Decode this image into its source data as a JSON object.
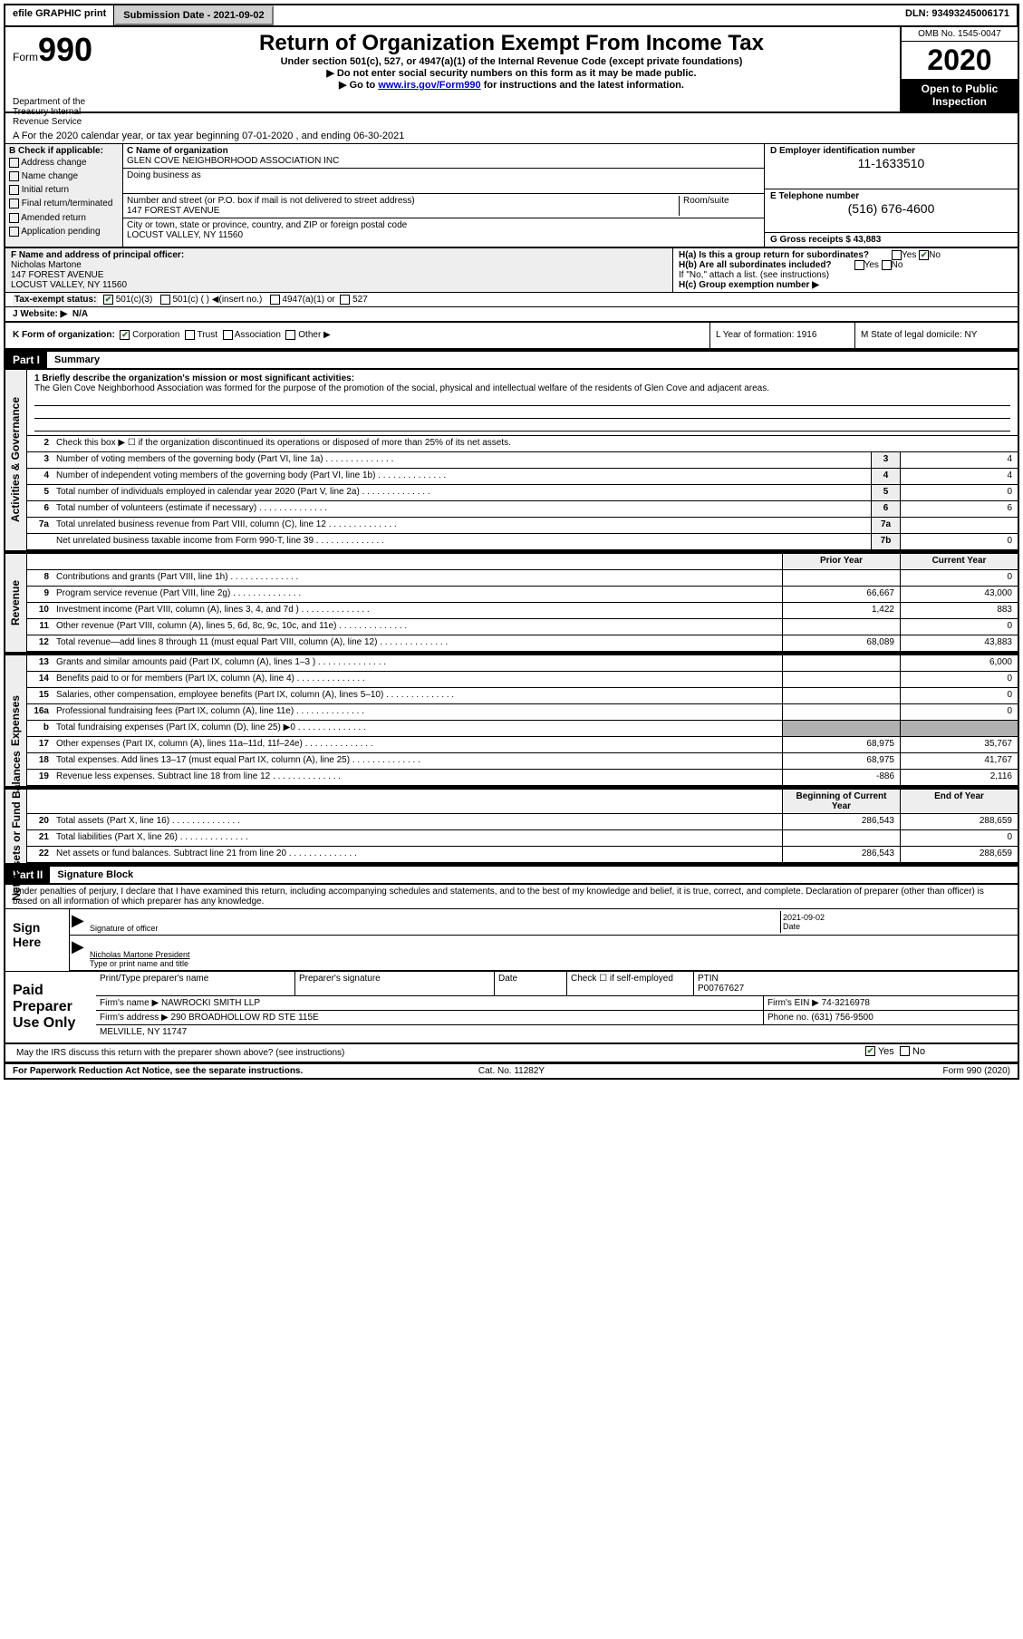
{
  "topbar": {
    "efile": "efile GRAPHIC print",
    "submission_label": "Submission Date - 2021-09-02",
    "dln": "DLN: 93493245006171"
  },
  "header": {
    "form_word": "Form",
    "form_number": "990",
    "title": "Return of Organization Exempt From Income Tax",
    "subtitle": "Under section 501(c), 527, or 4947(a)(1) of the Internal Revenue Code (except private foundations)",
    "instruction1": "▶ Do not enter social security numbers on this form as it may be made public.",
    "instruction2_pre": "▶ Go to ",
    "instruction2_link": "www.irs.gov/Form990",
    "instruction2_post": " for instructions and the latest information.",
    "omb": "OMB No. 1545-0047",
    "year": "2020",
    "public": "Open to Public Inspection",
    "dept": "Department of the Treasury Internal Revenue Service"
  },
  "section_a": "A For the 2020 calendar year, or tax year beginning 07-01-2020    , and ending 06-30-2021",
  "section_b": {
    "header": "B Check if applicable:",
    "items": [
      "Address change",
      "Name change",
      "Initial return",
      "Final return/terminated",
      "Amended return",
      "Application pending"
    ]
  },
  "section_c": {
    "name_label": "C Name of organization",
    "name": "GLEN COVE NEIGHBORHOOD ASSOCIATION INC",
    "dba_label": "Doing business as",
    "street_label": "Number and street (or P.O. box if mail is not delivered to street address)",
    "room_label": "Room/suite",
    "street": "147 FOREST AVENUE",
    "city_label": "City or town, state or province, country, and ZIP or foreign postal code",
    "city": "LOCUST VALLEY, NY  11560"
  },
  "section_d": {
    "ein_label": "D Employer identification number",
    "ein": "11-1633510",
    "phone_label": "E Telephone number",
    "phone": "(516) 676-4600",
    "gross_label": "G Gross receipts $ 43,883"
  },
  "section_f": {
    "label": "F  Name and address of principal officer:",
    "name": "Nicholas Martone",
    "addr1": "147 FOREST AVENUE",
    "addr2": "LOCUST VALLEY, NY  11560"
  },
  "section_h": {
    "ha": "H(a)  Is this a group return for subordinates?",
    "hb": "H(b)  Are all subordinates included?",
    "hb_note": "If \"No,\" attach a list. (see instructions)",
    "hc": "H(c)  Group exemption number ▶",
    "yes": "Yes",
    "no": "No"
  },
  "tax_exempt": {
    "label": "Tax-exempt status:",
    "opts": [
      "501(c)(3)",
      "501(c) (  ) ◀(insert no.)",
      "4947(a)(1) or",
      "527"
    ]
  },
  "website": {
    "label": "J   Website: ▶",
    "value": "N/A"
  },
  "section_k": {
    "label": "K Form of organization:",
    "opts": [
      "Corporation",
      "Trust",
      "Association",
      "Other ▶"
    ]
  },
  "section_l": {
    "label": "L Year of formation: 1916"
  },
  "section_m": {
    "label": "M State of legal domicile: NY"
  },
  "part1": {
    "num": "Part I",
    "title": "Summary",
    "sections": [
      "Activities & Governance",
      "Revenue",
      "Expenses",
      "Net Assets or Fund Balances"
    ],
    "mission_label": "1  Briefly describe the organization's mission or most significant activities:",
    "mission": "The Glen Cove Neighborhood Association was formed for the purpose of the promotion of the social, physical and intellectual welfare of the residents of Glen Cove and adjacent areas.",
    "line2": "Check this box ▶ ☐  if the organization discontinued its operations or disposed of more than 25% of its net assets.",
    "gov_lines": [
      {
        "n": "3",
        "t": "Number of voting members of the governing body (Part VI, line 1a)",
        "box": "3",
        "v": "4"
      },
      {
        "n": "4",
        "t": "Number of independent voting members of the governing body (Part VI, line 1b)",
        "box": "4",
        "v": "4"
      },
      {
        "n": "5",
        "t": "Total number of individuals employed in calendar year 2020 (Part V, line 2a)",
        "box": "5",
        "v": "0"
      },
      {
        "n": "6",
        "t": "Total number of volunteers (estimate if necessary)",
        "box": "6",
        "v": "6"
      },
      {
        "n": "7a",
        "t": "Total unrelated business revenue from Part VIII, column (C), line 12",
        "box": "7a",
        "v": ""
      },
      {
        "n": "",
        "t": "Net unrelated business taxable income from Form 990-T, line 39",
        "box": "7b",
        "v": "0"
      }
    ],
    "col_headers": {
      "prior": "Prior Year",
      "current": "Current Year",
      "boy": "Beginning of Current Year",
      "eoy": "End of Year"
    },
    "rev_lines": [
      {
        "n": "8",
        "t": "Contributions and grants (Part VIII, line 1h)",
        "p": "",
        "c": "0"
      },
      {
        "n": "9",
        "t": "Program service revenue (Part VIII, line 2g)",
        "p": "66,667",
        "c": "43,000"
      },
      {
        "n": "10",
        "t": "Investment income (Part VIII, column (A), lines 3, 4, and 7d )",
        "p": "1,422",
        "c": "883"
      },
      {
        "n": "11",
        "t": "Other revenue (Part VIII, column (A), lines 5, 6d, 8c, 9c, 10c, and 11e)",
        "p": "",
        "c": "0"
      },
      {
        "n": "12",
        "t": "Total revenue—add lines 8 through 11 (must equal Part VIII, column (A), line 12)",
        "p": "68,089",
        "c": "43,883"
      }
    ],
    "exp_lines": [
      {
        "n": "13",
        "t": "Grants and similar amounts paid (Part IX, column (A), lines 1–3 )",
        "p": "",
        "c": "6,000"
      },
      {
        "n": "14",
        "t": "Benefits paid to or for members (Part IX, column (A), line 4)",
        "p": "",
        "c": "0"
      },
      {
        "n": "15",
        "t": "Salaries, other compensation, employee benefits (Part IX, column (A), lines 5–10)",
        "p": "",
        "c": "0"
      },
      {
        "n": "16a",
        "t": "Professional fundraising fees (Part IX, column (A), line 11e)",
        "p": "",
        "c": "0"
      },
      {
        "n": "b",
        "t": "Total fundraising expenses (Part IX, column (D), line 25) ▶0",
        "p": "SHADED",
        "c": "SHADED"
      },
      {
        "n": "17",
        "t": "Other expenses (Part IX, column (A), lines 11a–11d, 11f–24e)",
        "p": "68,975",
        "c": "35,767"
      },
      {
        "n": "18",
        "t": "Total expenses. Add lines 13–17 (must equal Part IX, column (A), line 25)",
        "p": "68,975",
        "c": "41,767"
      },
      {
        "n": "19",
        "t": "Revenue less expenses. Subtract line 18 from line 12",
        "p": "-886",
        "c": "2,116"
      }
    ],
    "net_lines": [
      {
        "n": "20",
        "t": "Total assets (Part X, line 16)",
        "p": "286,543",
        "c": "288,659"
      },
      {
        "n": "21",
        "t": "Total liabilities (Part X, line 26)",
        "p": "",
        "c": "0"
      },
      {
        "n": "22",
        "t": "Net assets or fund balances. Subtract line 21 from line 20",
        "p": "286,543",
        "c": "288,659"
      }
    ]
  },
  "part2": {
    "num": "Part II",
    "title": "Signature Block",
    "penalty": "Under penalties of perjury, I declare that I have examined this return, including accompanying schedules and statements, and to the best of my knowledge and belief, it is true, correct, and complete. Declaration of preparer (other than officer) is based on all information of which preparer has any knowledge.",
    "sign_here": "Sign Here",
    "sig_officer": "Signature of officer",
    "date_label": "Date",
    "date_value": "2021-09-02",
    "officer_name": "Nicholas Martone  President",
    "officer_sub": "Type or print name and title",
    "paid_prep": "Paid Preparer Use Only",
    "prep_name_label": "Print/Type preparer's name",
    "prep_sig_label": "Preparer's signature",
    "prep_date_label": "Date",
    "self_emp": "Check ☐ if self-employed",
    "ptin_label": "PTIN",
    "ptin": "P00767627",
    "firm_name_label": "Firm's name     ▶",
    "firm_name": "NAWROCKI SMITH LLP",
    "firm_ein_label": "Firm's EIN ▶",
    "firm_ein": "74-3216978",
    "firm_addr_label": "Firm's address ▶",
    "firm_addr1": "290 BROADHOLLOW RD STE 115E",
    "firm_addr2": "MELVILLE, NY  11747",
    "firm_phone_label": "Phone no.",
    "firm_phone": "(631) 756-9500",
    "discuss": "May the IRS discuss this return with the preparer shown above? (see instructions)"
  },
  "footer": {
    "left": "For Paperwork Reduction Act Notice, see the separate instructions.",
    "mid": "Cat. No. 11282Y",
    "right": "Form 990 (2020)"
  }
}
